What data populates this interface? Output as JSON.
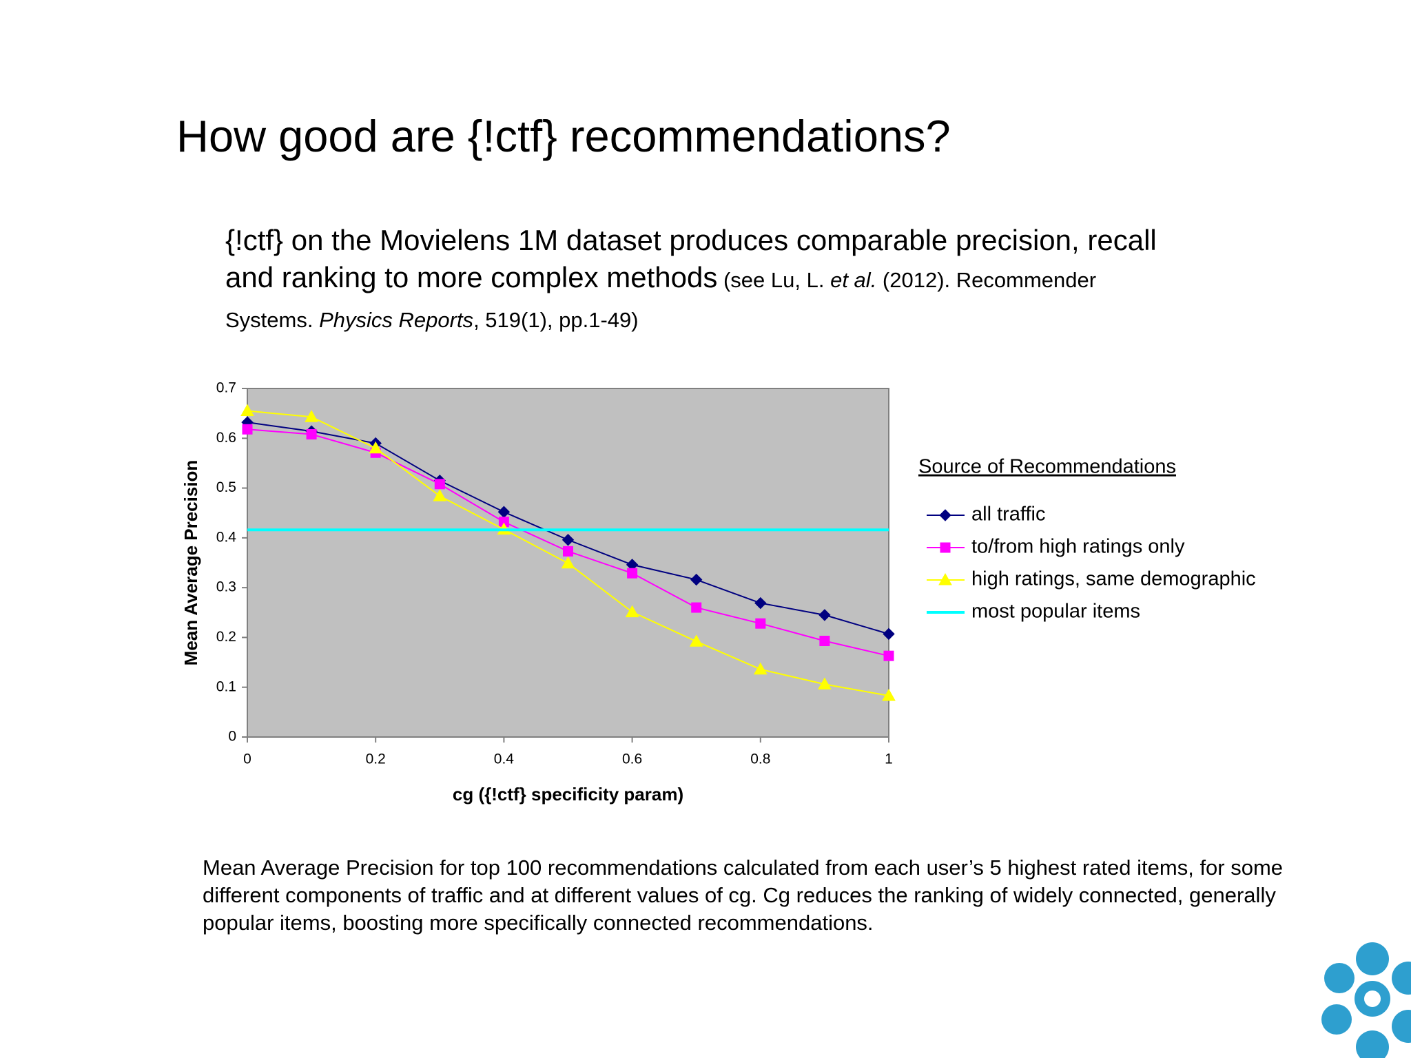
{
  "title": "How good are {!ctf} recommendations?",
  "intro": [
    "{!ctf} on the Movielens 1M dataset produces comparable precision, recall and ranking to more complex methods",
    " (see Lu, L. ",
    "et al.",
    " (2012). Recommender Systems. ",
    "Physics Reports",
    ", 519(1), pp.1-49)"
  ],
  "chart_data": {
    "type": "line",
    "x_label": "cg ({!ctf} specificity param)",
    "y_label": "Mean Average Precision",
    "legend_title": "Source of Recommendations",
    "legend": "right",
    "background": "#c0c0c0",
    "x": [
      0,
      0.1,
      0.2,
      0.3,
      0.4,
      0.5,
      0.6,
      0.7,
      0.8,
      0.9,
      1
    ],
    "xlim": [
      0,
      1
    ],
    "xticks": [
      0,
      0.2,
      0.4,
      0.6,
      0.8,
      1
    ],
    "ylim": [
      0,
      0.7
    ],
    "yticks": [
      0,
      0.1,
      0.2,
      0.3,
      0.4,
      0.5,
      0.6,
      0.7
    ],
    "series": [
      {
        "name": "all traffic",
        "color": "#000080",
        "marker": "diamond",
        "values": [
          0.632,
          0.614,
          0.59,
          0.515,
          0.452,
          0.396,
          0.346,
          0.316,
          0.269,
          0.245,
          0.207
        ]
      },
      {
        "name": "to/from high ratings only",
        "color": "#ff00ff",
        "marker": "square",
        "values": [
          0.618,
          0.608,
          0.571,
          0.508,
          0.432,
          0.373,
          0.329,
          0.26,
          0.228,
          0.193,
          0.163
        ]
      },
      {
        "name": "high ratings, same demographic",
        "color": "#ffff00",
        "marker": "triangle",
        "values": [
          0.655,
          0.643,
          0.58,
          0.484,
          0.417,
          0.349,
          0.251,
          0.192,
          0.136,
          0.106,
          0.083
        ]
      },
      {
        "name": "most popular items",
        "color": "#00ffff",
        "marker": "none",
        "values": [
          0.416,
          0.416,
          0.416,
          0.416,
          0.416,
          0.416,
          0.416,
          0.416,
          0.416,
          0.416,
          0.416
        ]
      }
    ]
  },
  "caption": "Mean Average Precision for top 100 recommendations calculated from each user’s 5 highest rated items, for some different components of traffic and at different values of cg.  Cg reduces the ranking of widely connected, generally popular items, boosting more specifically connected recommendations."
}
